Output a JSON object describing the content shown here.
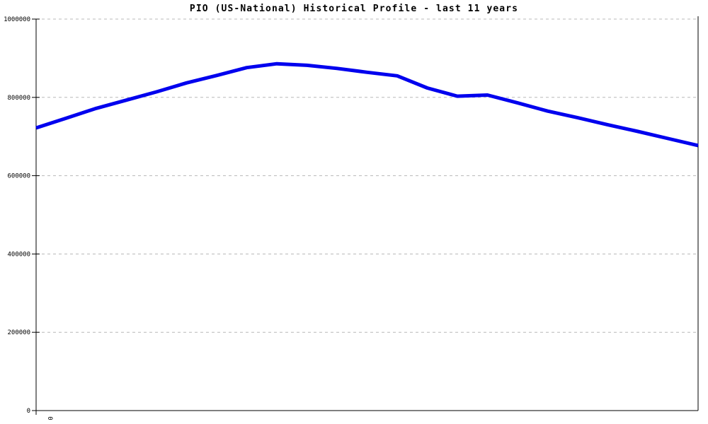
{
  "window": {
    "title": "PIO (US-National) Historical Profile - last 11 years"
  },
  "chart_data": {
    "type": "line",
    "title": "PIO (US-National) Historical Profile - last 11 years",
    "xlabel": "",
    "ylabel": "",
    "xlim": [
      0,
      11
    ],
    "ylim": [
      0,
      1000000
    ],
    "grid": "horizontal-dashed",
    "legend_position": "none",
    "x_unit": "years (only origin labeled)",
    "x": [
      0,
      0.5,
      1,
      1.5,
      2,
      2.5,
      3,
      3.5,
      4,
      4.5,
      5,
      5.5,
      6,
      6.5,
      7,
      7.5,
      8,
      8.5,
      9,
      9.5,
      10,
      10.5,
      11
    ],
    "series": [
      {
        "name": "PIO (US-National)",
        "color": "#0000ee",
        "values": [
          722000,
          747000,
          772000,
          793000,
          814000,
          837000,
          856000,
          876000,
          886000,
          882000,
          874000,
          864000,
          855000,
          824000,
          803000,
          806000,
          786000,
          765000,
          748000,
          730000,
          713000,
          695000,
          677000
        ]
      }
    ],
    "y_ticks": [
      0,
      200000,
      400000,
      600000,
      800000,
      1000000
    ],
    "y_tick_labels": [
      "0",
      "200000",
      "400000",
      "600000",
      "800000",
      "1000000"
    ],
    "x_tick_labels": [
      "0"
    ]
  },
  "axes": {
    "x_origin_label": "0"
  },
  "colors": {
    "line": "#0000ee",
    "grid": "#b8b8b8",
    "axis": "#000000",
    "background": "#ffffff",
    "title_text": "#000000"
  }
}
